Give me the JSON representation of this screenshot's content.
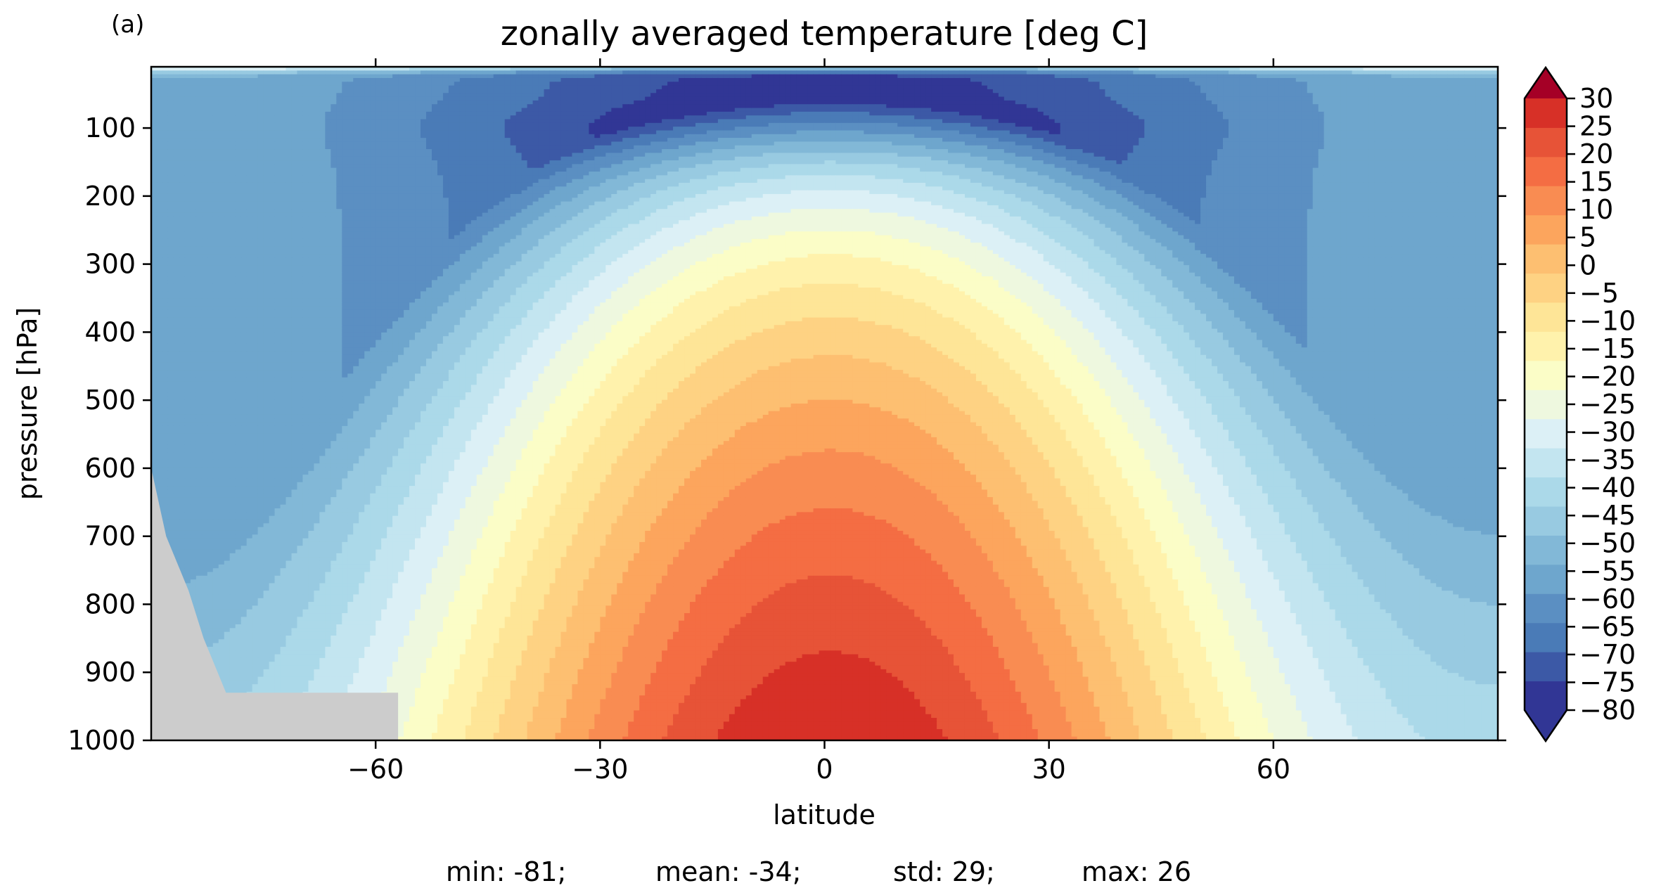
{
  "panel_label": "(a)",
  "stats": {
    "min": "min: -81;",
    "mean": "mean: -34;",
    "std": "std: 29;",
    "max": "max: 26"
  },
  "chart_data": {
    "type": "contour",
    "title": "zonally averaged temperature [deg C]",
    "xlabel": "latitude",
    "ylabel": "pressure [hPa]",
    "xlim": [
      -90,
      90
    ],
    "ylim": [
      10,
      1000
    ],
    "y_inverted": true,
    "x_ticks": [
      -60,
      -30,
      0,
      30,
      60
    ],
    "x_tick_labels": [
      "−60",
      "−30",
      "0",
      "30",
      "60"
    ],
    "y_ticks": [
      100,
      200,
      300,
      400,
      500,
      600,
      700,
      800,
      900,
      1000
    ],
    "y_tick_labels": [
      "100",
      "200",
      "300",
      "400",
      "500",
      "600",
      "700",
      "800",
      "900",
      "1000"
    ],
    "grid": false,
    "colormap": "RdYlBu_r",
    "colorbar": {
      "levels": [
        -80,
        -75,
        -70,
        -65,
        -60,
        -55,
        -50,
        -45,
        -40,
        -35,
        -30,
        -25,
        -20,
        -15,
        -10,
        -5,
        0,
        5,
        10,
        15,
        20,
        25,
        30
      ],
      "tick_labels": [
        "−80",
        "−75",
        "−70",
        "−65",
        "−60",
        "−55",
        "−50",
        "−45",
        "−40",
        "−35",
        "−30",
        "−25",
        "−20",
        "−15",
        "−10",
        "−5",
        "0",
        "5",
        "10",
        "15",
        "20",
        "25",
        "30"
      ],
      "colors": [
        "#313695",
        "#3c59a6",
        "#4a7bb7",
        "#5b8fc2",
        "#6ea6cd",
        "#82b8d7",
        "#98cae1",
        "#abd9e9",
        "#c3e5f0",
        "#dcf0f6",
        "#eef8df",
        "#fbfdc7",
        "#fff2ac",
        "#fee597",
        "#fed283",
        "#fdbf71",
        "#fca55d",
        "#f98c52",
        "#f46d43",
        "#e75337",
        "#d73027",
        "#c1212a",
        "#a50026"
      ],
      "extend": "both",
      "position": "right"
    },
    "masked_region": {
      "description_color": "#cccccc",
      "latitudes": [
        -90,
        -88,
        -85,
        -83,
        -80,
        -78,
        -75,
        -72,
        -65,
        -60,
        -57,
        -57
      ],
      "pressures": [
        600,
        700,
        780,
        850,
        930,
        930,
        930,
        930,
        930,
        930,
        930,
        1000
      ]
    },
    "field_summary": {
      "surface_equator_max": 26,
      "tropopause_cold_core_lat": 0,
      "tropopause_cold_core_pressure": 100
    }
  }
}
